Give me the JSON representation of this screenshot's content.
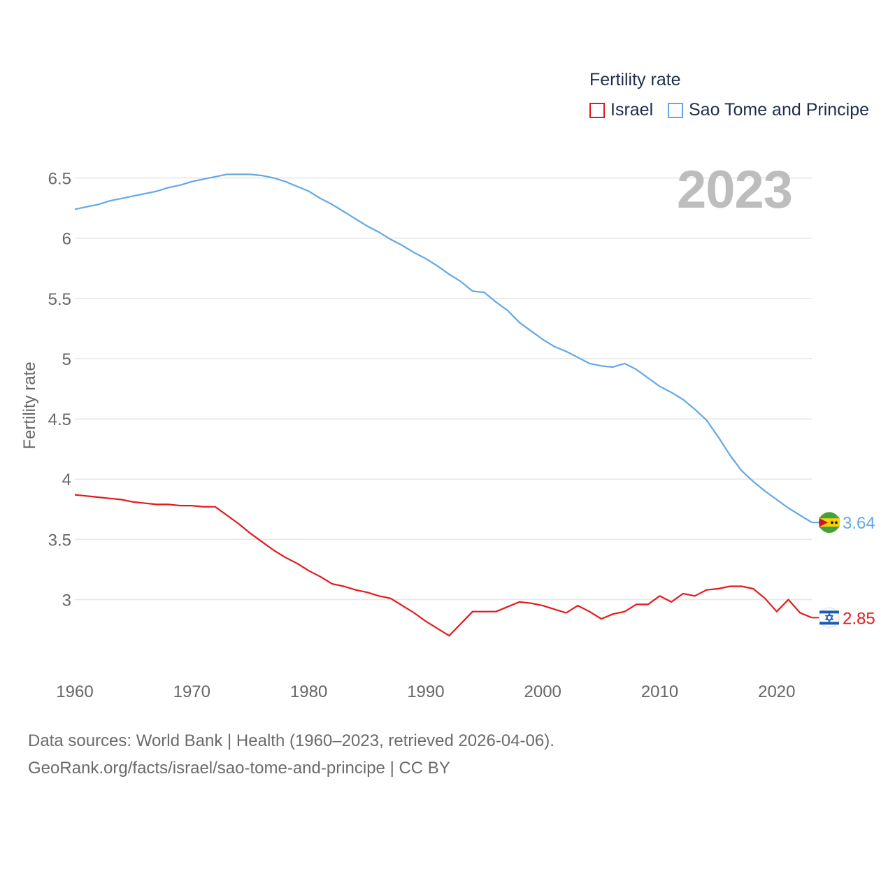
{
  "colors": {
    "israel": "#e31a1c",
    "sao_tome": "#63a8e6",
    "grid": "#e6e6e6",
    "axis_text": "#666666",
    "watermark": "#bdbdbd"
  },
  "legend": {
    "title": "Fertility rate",
    "items": [
      {
        "label": "Israel",
        "color": "#e31a1c"
      },
      {
        "label": "Sao Tome and Principe",
        "color": "#63a8e6"
      }
    ]
  },
  "year_display": "2023",
  "footer": {
    "line1": "Data sources: World Bank | Health (1960–2023, retrieved 2026-04-06).",
    "line2": "GeoRank.org/facts/israel/sao-tome-and-principe | CC BY"
  },
  "chart_data": {
    "type": "line",
    "title": "",
    "xlabel": "",
    "ylabel": "Fertility rate",
    "xlim": [
      1960,
      2023
    ],
    "ylim": [
      2.55,
      6.65
    ],
    "x_ticks": [
      1960,
      1970,
      1980,
      1990,
      2000,
      2010,
      2020
    ],
    "y_ticks": [
      3,
      3.5,
      4,
      4.5,
      5,
      5.5,
      6,
      6.5
    ],
    "y_tick_labels": [
      "3",
      "3.5",
      "4",
      "4.5",
      "5",
      "5.5",
      "6",
      "6.5"
    ],
    "x": [
      1960,
      1961,
      1962,
      1963,
      1964,
      1965,
      1966,
      1967,
      1968,
      1969,
      1970,
      1971,
      1972,
      1973,
      1974,
      1975,
      1976,
      1977,
      1978,
      1979,
      1980,
      1981,
      1982,
      1983,
      1984,
      1985,
      1986,
      1987,
      1988,
      1989,
      1990,
      1991,
      1992,
      1993,
      1994,
      1995,
      1996,
      1997,
      1998,
      1999,
      2000,
      2001,
      2002,
      2003,
      2004,
      2005,
      2006,
      2007,
      2008,
      2009,
      2010,
      2011,
      2012,
      2013,
      2014,
      2015,
      2016,
      2017,
      2018,
      2019,
      2020,
      2021,
      2022,
      2023
    ],
    "series": [
      {
        "name": "Israel",
        "color": "#e31a1c",
        "end_label": "2.85",
        "values": [
          3.87,
          3.86,
          3.85,
          3.84,
          3.83,
          3.81,
          3.8,
          3.79,
          3.79,
          3.78,
          3.78,
          3.77,
          3.77,
          3.7,
          3.63,
          3.55,
          3.48,
          3.41,
          3.35,
          3.3,
          3.24,
          3.19,
          3.13,
          3.11,
          3.08,
          3.06,
          3.03,
          3.01,
          2.95,
          2.89,
          2.82,
          2.76,
          2.7,
          2.8,
          2.9,
          2.9,
          2.9,
          2.94,
          2.98,
          2.97,
          2.95,
          2.92,
          2.89,
          2.95,
          2.9,
          2.84,
          2.88,
          2.9,
          2.96,
          2.96,
          3.03,
          2.98,
          3.05,
          3.03,
          3.08,
          3.09,
          3.11,
          3.11,
          3.09,
          3.01,
          2.9,
          3.0,
          2.89,
          2.85
        ]
      },
      {
        "name": "Sao Tome and Principe",
        "color": "#63a8e6",
        "end_label": "3.64",
        "values": [
          6.24,
          6.26,
          6.28,
          6.31,
          6.33,
          6.35,
          6.37,
          6.39,
          6.42,
          6.44,
          6.47,
          6.49,
          6.51,
          6.53,
          6.53,
          6.53,
          6.52,
          6.5,
          6.47,
          6.43,
          6.39,
          6.33,
          6.28,
          6.22,
          6.16,
          6.1,
          6.05,
          5.99,
          5.94,
          5.88,
          5.83,
          5.77,
          5.7,
          5.64,
          5.56,
          5.55,
          5.47,
          5.4,
          5.3,
          5.23,
          5.16,
          5.1,
          5.06,
          5.01,
          4.96,
          4.94,
          4.93,
          4.96,
          4.91,
          4.84,
          4.77,
          4.72,
          4.66,
          4.58,
          4.49,
          4.35,
          4.2,
          4.07,
          3.98,
          3.9,
          3.83,
          3.76,
          3.7,
          3.64
        ]
      }
    ]
  }
}
